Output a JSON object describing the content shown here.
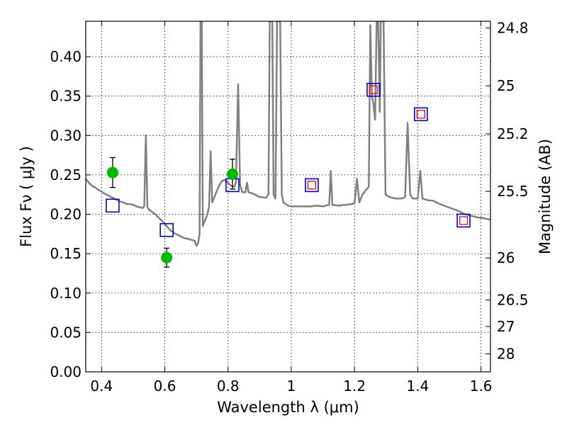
{
  "chart_data": {
    "type": "scatter",
    "xlabel": "Wavelength  λ (μm)",
    "ylabel": "Flux  Fν  ( μJy )",
    "ylabel_right": "Magnitude (AB)",
    "xlim": [
      0.35,
      1.63
    ],
    "ylim": [
      0.0,
      0.445
    ],
    "grid": true,
    "x_ticks": [
      0.4,
      0.6,
      0.8,
      1.0,
      1.2,
      1.4,
      1.6
    ],
    "x_tick_labels": [
      "0.4",
      "0.6",
      "0.8",
      "1",
      "1.2",
      "1.4",
      "1.6"
    ],
    "y_ticks": [
      0.0,
      0.05,
      0.1,
      0.15,
      0.2,
      0.25,
      0.3,
      0.35,
      0.4
    ],
    "y_tick_labels": [
      "0.00",
      "0.05",
      "0.10",
      "0.15",
      "0.20",
      "0.25",
      "0.30",
      "0.35",
      "0.40"
    ],
    "mag_ticks": [
      24.8,
      25,
      25.2,
      25.5,
      26,
      26.5,
      27,
      28
    ],
    "mag_tick_labels": [
      "24.8",
      "25",
      "25.2",
      "25.5",
      "26",
      "26.5",
      "27",
      "28"
    ],
    "colors": {
      "spectrum": "#808080",
      "observed": "#00bb00",
      "model": "#0000ff",
      "model_inner": "#ff0000",
      "errorbar": "#000000"
    },
    "series": [
      {
        "marker": "circle",
        "points": [
          {
            "x": 0.435,
            "y": 0.253,
            "err": 0.019
          },
          {
            "x": 0.606,
            "y": 0.145,
            "err": 0.012
          },
          {
            "x": 0.814,
            "y": 0.251,
            "err": 0.019
          }
        ]
      },
      {
        "marker": "open-square",
        "points": [
          {
            "x": 0.435,
            "y": 0.211
          },
          {
            "x": 0.606,
            "y": 0.18
          },
          {
            "x": 0.814,
            "y": 0.237
          },
          {
            "x": 1.065,
            "y": 0.237
          },
          {
            "x": 1.26,
            "y": 0.358
          },
          {
            "x": 1.41,
            "y": 0.327
          },
          {
            "x": 1.545,
            "y": 0.192
          }
        ]
      },
      {
        "marker": "small-square",
        "points": [
          {
            "x": 1.065,
            "y": 0.237
          },
          {
            "x": 1.26,
            "y": 0.358
          },
          {
            "x": 1.41,
            "y": 0.327
          },
          {
            "x": 1.545,
            "y": 0.192
          }
        ]
      }
    ],
    "spectrum": [
      [
        0.35,
        0.245
      ],
      [
        0.36,
        0.24
      ],
      [
        0.37,
        0.236
      ],
      [
        0.38,
        0.234
      ],
      [
        0.39,
        0.231
      ],
      [
        0.4,
        0.229
      ],
      [
        0.41,
        0.226
      ],
      [
        0.42,
        0.224
      ],
      [
        0.43,
        0.222
      ],
      [
        0.44,
        0.22
      ],
      [
        0.45,
        0.218
      ],
      [
        0.46,
        0.216
      ],
      [
        0.47,
        0.215
      ],
      [
        0.48,
        0.213
      ],
      [
        0.49,
        0.213
      ],
      [
        0.5,
        0.212
      ],
      [
        0.51,
        0.21
      ],
      [
        0.52,
        0.209
      ],
      [
        0.53,
        0.208
      ],
      [
        0.535,
        0.21
      ],
      [
        0.54,
        0.3
      ],
      [
        0.545,
        0.209
      ],
      [
        0.55,
        0.206
      ],
      [
        0.56,
        0.203
      ],
      [
        0.57,
        0.2
      ],
      [
        0.58,
        0.196
      ],
      [
        0.59,
        0.192
      ],
      [
        0.6,
        0.188
      ],
      [
        0.61,
        0.183
      ],
      [
        0.62,
        0.179
      ],
      [
        0.63,
        0.176
      ],
      [
        0.64,
        0.174
      ],
      [
        0.65,
        0.172
      ],
      [
        0.66,
        0.17
      ],
      [
        0.67,
        0.169
      ],
      [
        0.68,
        0.168
      ],
      [
        0.69,
        0.167
      ],
      [
        0.695,
        0.166
      ],
      [
        0.7,
        0.16
      ],
      [
        0.705,
        0.163
      ],
      [
        0.71,
        0.175
      ],
      [
        0.713,
        0.445
      ],
      [
        0.717,
        0.445
      ],
      [
        0.72,
        0.185
      ],
      [
        0.725,
        0.19
      ],
      [
        0.73,
        0.195
      ],
      [
        0.735,
        0.2
      ],
      [
        0.74,
        0.21
      ],
      [
        0.745,
        0.28
      ],
      [
        0.75,
        0.215
      ],
      [
        0.76,
        0.225
      ],
      [
        0.77,
        0.235
      ],
      [
        0.78,
        0.242
      ],
      [
        0.79,
        0.244
      ],
      [
        0.8,
        0.24
      ],
      [
        0.81,
        0.236
      ],
      [
        0.82,
        0.235
      ],
      [
        0.825,
        0.24
      ],
      [
        0.832,
        0.365
      ],
      [
        0.838,
        0.238
      ],
      [
        0.845,
        0.228
      ],
      [
        0.855,
        0.228
      ],
      [
        0.86,
        0.24
      ],
      [
        0.865,
        0.228
      ],
      [
        0.88,
        0.226
      ],
      [
        0.9,
        0.222
      ],
      [
        0.92,
        0.221
      ],
      [
        0.928,
        0.225
      ],
      [
        0.932,
        0.445
      ],
      [
        0.94,
        0.445
      ],
      [
        0.944,
        0.225
      ],
      [
        0.95,
        0.22
      ],
      [
        0.955,
        0.445
      ],
      [
        0.965,
        0.445
      ],
      [
        0.97,
        0.225
      ],
      [
        0.975,
        0.215
      ],
      [
        0.99,
        0.211
      ],
      [
        1.0,
        0.21
      ],
      [
        1.02,
        0.21
      ],
      [
        1.04,
        0.21
      ],
      [
        1.06,
        0.21
      ],
      [
        1.08,
        0.211
      ],
      [
        1.1,
        0.21
      ],
      [
        1.12,
        0.212
      ],
      [
        1.125,
        0.255
      ],
      [
        1.13,
        0.212
      ],
      [
        1.15,
        0.211
      ],
      [
        1.17,
        0.212
      ],
      [
        1.19,
        0.213
      ],
      [
        1.2,
        0.214
      ],
      [
        1.208,
        0.245
      ],
      [
        1.215,
        0.215
      ],
      [
        1.225,
        0.225
      ],
      [
        1.235,
        0.23
      ],
      [
        1.245,
        0.235
      ],
      [
        1.25,
        0.44
      ],
      [
        1.255,
        0.35
      ],
      [
        1.26,
        0.34
      ],
      [
        1.265,
        0.32
      ],
      [
        1.27,
        0.445
      ],
      [
        1.275,
        0.445
      ],
      [
        1.28,
        0.33
      ],
      [
        1.283,
        0.445
      ],
      [
        1.292,
        0.445
      ],
      [
        1.298,
        0.225
      ],
      [
        1.31,
        0.222
      ],
      [
        1.33,
        0.22
      ],
      [
        1.35,
        0.22
      ],
      [
        1.36,
        0.222
      ],
      [
        1.368,
        0.316
      ],
      [
        1.376,
        0.225
      ],
      [
        1.385,
        0.22
      ],
      [
        1.4,
        0.22
      ],
      [
        1.408,
        0.255
      ],
      [
        1.415,
        0.22
      ],
      [
        1.43,
        0.218
      ],
      [
        1.45,
        0.217
      ],
      [
        1.47,
        0.213
      ],
      [
        1.49,
        0.21
      ],
      [
        1.51,
        0.207
      ],
      [
        1.53,
        0.204
      ],
      [
        1.55,
        0.2
      ],
      [
        1.57,
        0.198
      ],
      [
        1.59,
        0.196
      ],
      [
        1.61,
        0.195
      ],
      [
        1.63,
        0.193
      ]
    ]
  }
}
